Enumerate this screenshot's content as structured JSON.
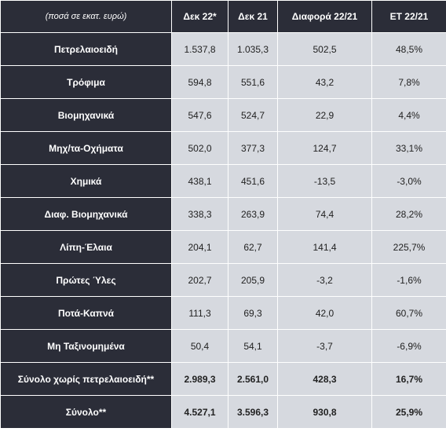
{
  "table": {
    "headers": [
      "(ποσά σε εκατ. ευρώ)",
      "Δεκ 22*",
      "Δεκ 21",
      "Διαφορά 22/21",
      "ΕΤ 22/21"
    ],
    "rows": [
      {
        "label": "Πετρελαιοειδή",
        "cells": [
          "1.537,8",
          "1.035,3",
          "502,5",
          "48,5%"
        ]
      },
      {
        "label": "Τρόφιμα",
        "cells": [
          "594,8",
          "551,6",
          "43,2",
          "7,8%"
        ]
      },
      {
        "label": "Βιομηχανικά",
        "cells": [
          "547,6",
          "524,7",
          "22,9",
          "4,4%"
        ]
      },
      {
        "label": "Μηχ/τα-Οχήματα",
        "cells": [
          "502,0",
          "377,3",
          "124,7",
          "33,1%"
        ]
      },
      {
        "label": "Χημικά",
        "cells": [
          "438,1",
          "451,6",
          "-13,5",
          "-3,0%"
        ]
      },
      {
        "label": "Διαφ. Βιομηχανικά",
        "cells": [
          "338,3",
          "263,9",
          "74,4",
          "28,2%"
        ]
      },
      {
        "label": "Λίπη-Έλαια",
        "cells": [
          "204,1",
          "62,7",
          "141,4",
          "225,7%"
        ]
      },
      {
        "label": "Πρώτες Ύλες",
        "cells": [
          "202,7",
          "205,9",
          "-3,2",
          "-1,6%"
        ]
      },
      {
        "label": "Ποτά-Καπνά",
        "cells": [
          "111,3",
          "69,3",
          "42,0",
          "60,7%"
        ]
      },
      {
        "label": "Μη Ταξινομημένα",
        "cells": [
          "50,4",
          "54,1",
          "-3,7",
          "-6,9%"
        ]
      },
      {
        "label": "Σύνολο χωρίς πετρελαιοειδή**",
        "cells": [
          "2.989,3",
          "2.561,0",
          "428,3",
          "16,7%"
        ]
      },
      {
        "label": "Σύνολο**",
        "cells": [
          "4.527,1",
          "3.596,3",
          "930,8",
          "25,9%"
        ]
      }
    ]
  }
}
